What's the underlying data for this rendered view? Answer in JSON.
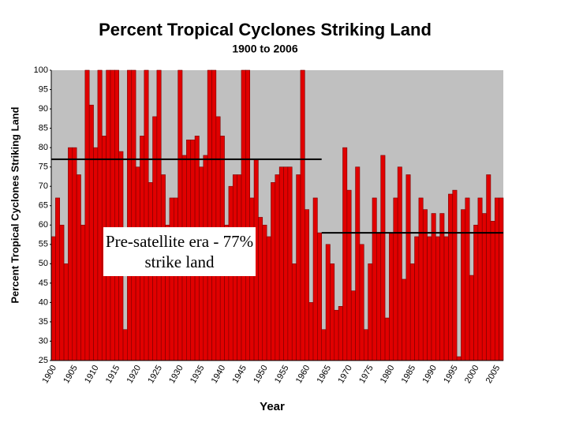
{
  "chart_data": {
    "type": "bar",
    "title": "Percent Tropical Cyclones Striking Land",
    "subtitle": "1900 to 2006",
    "x_label": "Year",
    "y_label": "Percent Tropical Cyclones Striking Land",
    "annotation": "Pre-satellite era - 77% strike land",
    "categories": [
      "1900",
      null,
      null,
      null,
      null,
      "1905",
      null,
      null,
      null,
      null,
      "1910",
      null,
      null,
      null,
      null,
      "1915",
      null,
      null,
      null,
      null,
      "1920",
      null,
      null,
      null,
      null,
      "1925",
      null,
      null,
      null,
      null,
      "1930",
      null,
      null,
      null,
      null,
      "1935",
      null,
      null,
      null,
      null,
      "1940",
      null,
      null,
      null,
      null,
      "1945",
      null,
      null,
      null,
      null,
      "1950",
      null,
      null,
      null,
      null,
      "1955",
      null,
      null,
      null,
      null,
      "1960",
      null,
      null,
      null,
      null,
      "1965",
      null,
      null,
      null,
      null,
      "1970",
      null,
      null,
      null,
      null,
      "1975",
      null,
      null,
      null,
      null,
      "1980",
      null,
      null,
      null,
      null,
      "1985",
      null,
      null,
      null,
      null,
      "1990",
      null,
      null,
      null,
      null,
      "1995",
      null,
      null,
      null,
      null,
      "2000",
      null,
      null,
      null,
      null,
      "2005",
      null
    ],
    "values": [
      57,
      67,
      60,
      50,
      80,
      80,
      73,
      60,
      100,
      91,
      80,
      100,
      83,
      100,
      100,
      100,
      79,
      33,
      100,
      100,
      75,
      83,
      100,
      71,
      88,
      100,
      73,
      60,
      67,
      67,
      100,
      78,
      82,
      82,
      83,
      75,
      78,
      100,
      100,
      88,
      83,
      60,
      70,
      73,
      73,
      100,
      100,
      67,
      77,
      62,
      60,
      57,
      71,
      73,
      75,
      75,
      75,
      50,
      73,
      100,
      64,
      40,
      67,
      58,
      33,
      55,
      50,
      38,
      39,
      80,
      69,
      43,
      75,
      55,
      33,
      50,
      67,
      58,
      78,
      36,
      58,
      67,
      75,
      46,
      73,
      50,
      57,
      67,
      64,
      57,
      63,
      57,
      63,
      57,
      68,
      69,
      26,
      64,
      67,
      47,
      60,
      67,
      63,
      73,
      61,
      67,
      67
    ],
    "color": "#e00000",
    "ylim": [
      25,
      100
    ],
    "yticks": [
      25,
      30,
      35,
      40,
      45,
      50,
      55,
      60,
      65,
      70,
      75,
      80,
      85,
      90,
      95,
      100
    ],
    "reference_lines": [
      {
        "value": 77,
        "start": 1900,
        "end": 1964
      },
      {
        "value": 58,
        "start": 1964,
        "end": 2007
      }
    ]
  }
}
